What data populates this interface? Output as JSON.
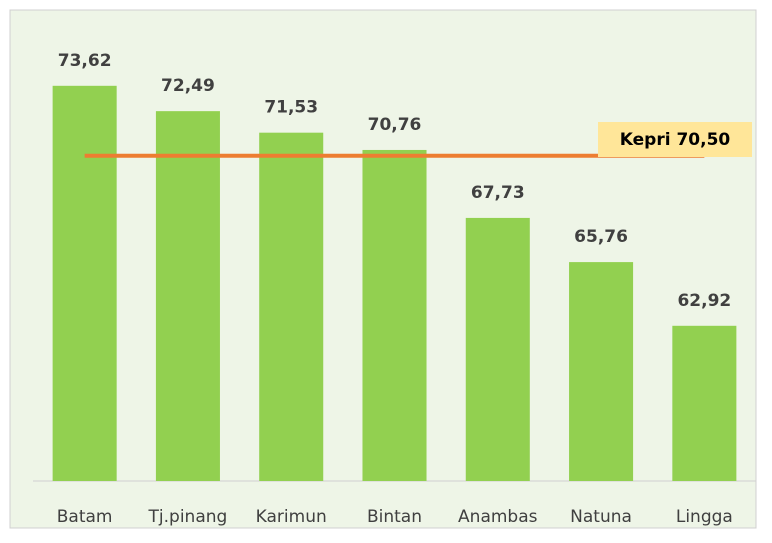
{
  "chart_data": {
    "type": "bar",
    "categories": [
      "Batam",
      "Tj.pinang",
      "Karimun",
      "Bintan",
      "Anambas",
      "Natuna",
      "Lingga"
    ],
    "values": [
      73.62,
      72.49,
      71.53,
      70.76,
      67.73,
      65.76,
      62.92
    ],
    "value_labels": [
      "73,62",
      "72,49",
      "71,53",
      "70,76",
      "67,73",
      "65,76",
      "62,92"
    ],
    "color": "#92d050",
    "ylim": [
      56,
      77
    ],
    "reference_line": {
      "value": 70.5,
      "label": "Kepri 70,50",
      "color": "#ed7d31"
    }
  }
}
